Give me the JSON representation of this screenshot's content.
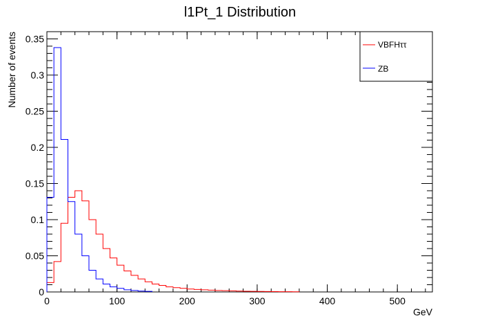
{
  "chart_data": {
    "type": "line",
    "title": "l1Pt_1 Distribution",
    "xlabel": "GeV",
    "ylabel": "Number of events",
    "xlim": [
      0,
      550
    ],
    "ylim": [
      0,
      0.36
    ],
    "bin_width": 10,
    "grid": false,
    "legend_position": "top-right",
    "x_ticks": [
      0,
      100,
      200,
      300,
      400,
      500
    ],
    "x_tick_labels": [
      "0",
      "100",
      "200",
      "300",
      "400",
      "500"
    ],
    "y_ticks": [
      0,
      0.05,
      0.1,
      0.15,
      0.2,
      0.25,
      0.3,
      0.35
    ],
    "y_tick_labels": [
      "0",
      "0.05",
      "0.1",
      "0.15",
      "0.2",
      "0.25",
      "0.3",
      "0.35"
    ],
    "series": [
      {
        "name": "VBFHττ",
        "color": "#ff0000",
        "x": [
          0,
          10,
          20,
          30,
          40,
          50,
          60,
          70,
          80,
          90,
          100,
          110,
          120,
          130,
          140,
          150,
          160,
          170,
          180,
          190,
          200,
          210,
          220,
          230,
          240,
          250,
          260,
          270,
          280,
          290,
          300,
          310,
          320,
          330,
          340,
          350
        ],
        "values": [
          0.013,
          0.042,
          0.095,
          0.131,
          0.14,
          0.126,
          0.1,
          0.08,
          0.06,
          0.047,
          0.037,
          0.029,
          0.023,
          0.018,
          0.014,
          0.011,
          0.009,
          0.007,
          0.006,
          0.005,
          0.004,
          0.0035,
          0.003,
          0.0025,
          0.002,
          0.0018,
          0.0015,
          0.0012,
          0.001,
          0.0008,
          0.0007,
          0.0006,
          0.0005,
          0.0004,
          0.0003,
          0.0002
        ]
      },
      {
        "name": "ZB",
        "color": "#0000ff",
        "x": [
          0,
          10,
          20,
          30,
          40,
          50,
          60,
          70,
          80,
          90,
          100,
          110,
          120,
          130,
          140
        ],
        "values": [
          0.131,
          0.338,
          0.211,
          0.125,
          0.08,
          0.05,
          0.03,
          0.018,
          0.011,
          0.007,
          0.005,
          0.003,
          0.002,
          0.0012,
          0.0008
        ]
      }
    ]
  }
}
